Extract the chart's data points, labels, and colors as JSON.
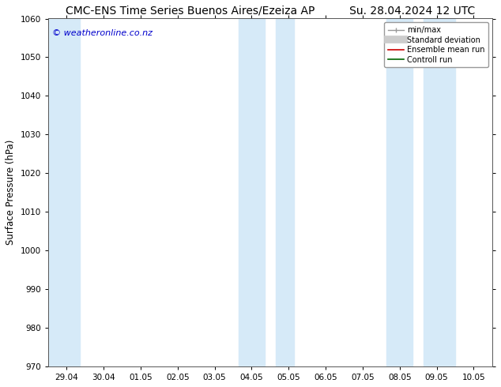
{
  "title_left": "CMC-ENS Time Series Buenos Aires/Ezeiza AP",
  "title_right": "Su. 28.04.2024 12 UTC",
  "ylabel": "Surface Pressure (hPa)",
  "ylim": [
    970,
    1060
  ],
  "yticks": [
    970,
    980,
    990,
    1000,
    1010,
    1020,
    1030,
    1040,
    1050,
    1060
  ],
  "xlim_start": -0.5,
  "xlim_end": 11.5,
  "xtick_labels": [
    "29.04",
    "30.04",
    "01.05",
    "02.05",
    "03.05",
    "04.05",
    "05.05",
    "06.05",
    "07.05",
    "08.05",
    "09.05",
    "10.05"
  ],
  "xtick_positions": [
    0,
    1,
    2,
    3,
    4,
    5,
    6,
    7,
    8,
    9,
    10,
    11
  ],
  "watermark": "© weatheronline.co.nz",
  "watermark_color": "#0000cc",
  "bg_color": "#ffffff",
  "plot_bg_color": "#ffffff",
  "shaded_bands": [
    {
      "x_start": -0.5,
      "x_end": 0.35,
      "color": "#d6eaf8"
    },
    {
      "x_start": 4.65,
      "x_end": 5.35,
      "color": "#d6eaf8"
    },
    {
      "x_start": 5.65,
      "x_end": 6.15,
      "color": "#d6eaf8"
    },
    {
      "x_start": 8.65,
      "x_end": 9.35,
      "color": "#d6eaf8"
    },
    {
      "x_start": 9.65,
      "x_end": 10.5,
      "color": "#d6eaf8"
    }
  ],
  "legend_entries": [
    {
      "label": "min/max",
      "color": "#aaaaaa",
      "lw": 1.2
    },
    {
      "label": "Standard deviation",
      "color": "#cccccc",
      "lw": 6
    },
    {
      "label": "Ensemble mean run",
      "color": "#cc0000",
      "lw": 1.2
    },
    {
      "label": "Controll run",
      "color": "#006600",
      "lw": 1.2
    }
  ],
  "title_fontsize": 10,
  "tick_fontsize": 7.5,
  "ylabel_fontsize": 8.5,
  "watermark_fontsize": 8,
  "spine_color": "#555555"
}
